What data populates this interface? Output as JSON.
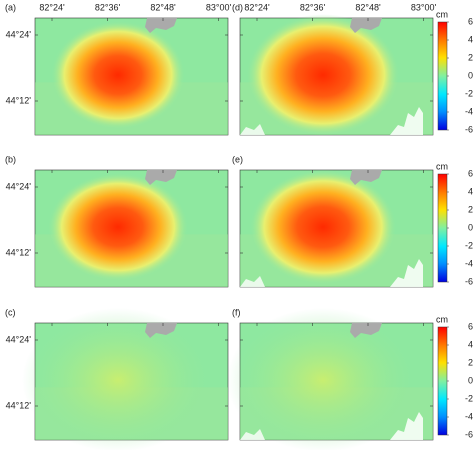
{
  "panels": [
    {
      "label": "(a)"
    },
    {
      "label": "(b)"
    },
    {
      "label": "(c)"
    },
    {
      "label": "(d)"
    },
    {
      "label": "(e)"
    },
    {
      "label": "(f)"
    }
  ],
  "lon_ticks": [
    "82°24'",
    "82°36'",
    "82°48'",
    "83°00'"
  ],
  "lat_ticks": [
    "44°24'",
    "44°12'"
  ],
  "colorbar": {
    "unit": "cm",
    "ticks": [
      6,
      4,
      2,
      0,
      -2,
      -4,
      -6
    ]
  }
}
